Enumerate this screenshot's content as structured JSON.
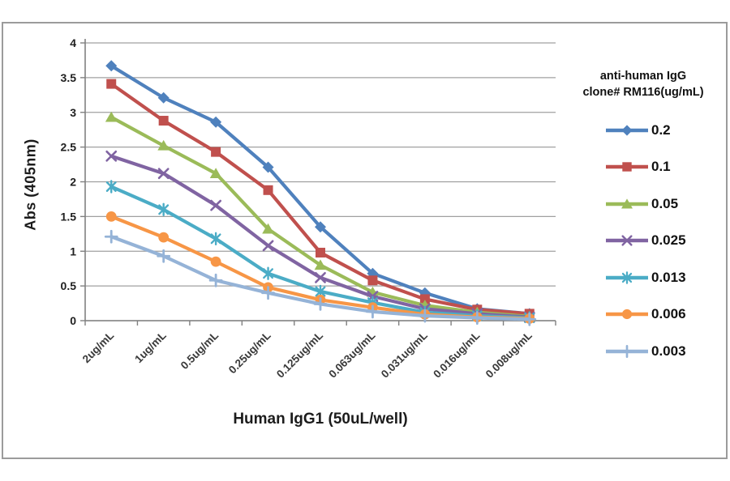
{
  "figure": {
    "y_axis_title": "Abs (405nm)",
    "x_axis_title": "Human IgG1 (50uL/well)"
  },
  "legend": {
    "title_line1": "anti-human IgG",
    "title_line2": "clone# RM116(ug/mL)",
    "position": "right"
  },
  "chart_data": {
    "type": "line",
    "title": "",
    "xlabel": "Human IgG1 (50uL/well)",
    "ylabel": "Abs (405nm)",
    "ylim": [
      0,
      4
    ],
    "ytick_step": 0.5,
    "ytick_labels": [
      "4",
      "3.5",
      "3",
      "2.5",
      "2",
      "1.5",
      "1",
      "0.5",
      "0"
    ],
    "grid": "horizontal",
    "legend_title": "anti-human IgG clone# RM116(ug/mL)",
    "legend_position": "right",
    "categories": [
      "2ug/mL",
      "1ug/mL",
      "0.5ug/mL",
      "0.25ug/mL",
      "0.125ug/mL",
      "0.063ug/mL",
      "0.031ug/mL",
      "0.016ug/mL",
      "0.008ug/mL"
    ],
    "series": [
      {
        "name": "0.2",
        "color": "#4F81BD",
        "marker": "diamond",
        "values": [
          3.67,
          3.21,
          2.86,
          2.21,
          1.35,
          0.68,
          0.4,
          0.17,
          0.1
        ]
      },
      {
        "name": "0.1",
        "color": "#C0504D",
        "marker": "square",
        "values": [
          3.41,
          2.88,
          2.43,
          1.88,
          0.98,
          0.58,
          0.31,
          0.16,
          0.1
        ]
      },
      {
        "name": "0.05",
        "color": "#9BBB59",
        "marker": "triangle",
        "values": [
          2.93,
          2.52,
          2.12,
          1.32,
          0.8,
          0.41,
          0.22,
          0.12,
          0.06
        ]
      },
      {
        "name": "0.025",
        "color": "#8064A2",
        "marker": "x",
        "values": [
          2.37,
          2.12,
          1.66,
          1.08,
          0.62,
          0.35,
          0.17,
          0.1,
          0.05
        ]
      },
      {
        "name": "0.013",
        "color": "#4BACC6",
        "marker": "asterisk",
        "values": [
          1.93,
          1.6,
          1.18,
          0.68,
          0.42,
          0.26,
          0.12,
          0.07,
          0.04
        ]
      },
      {
        "name": "0.006",
        "color": "#F79646",
        "marker": "circle",
        "values": [
          1.5,
          1.2,
          0.85,
          0.48,
          0.3,
          0.19,
          0.09,
          0.05,
          0.03
        ]
      },
      {
        "name": "0.003",
        "color": "#95B3D7",
        "marker": "plus",
        "values": [
          1.21,
          0.93,
          0.58,
          0.4,
          0.24,
          0.13,
          0.07,
          0.04,
          0.02
        ]
      }
    ]
  },
  "style_colors": {
    "gridline": "#a0a0a0",
    "axis_line": "#808080",
    "chart_border": "#9b9b9b",
    "tick_text": "#1f1f1f",
    "category_text": "#3a3a3a"
  }
}
